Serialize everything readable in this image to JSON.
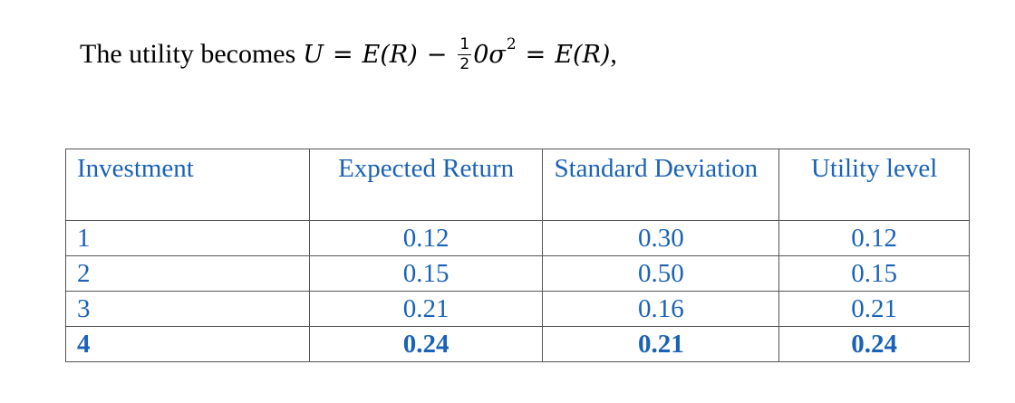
{
  "intro": {
    "prefix": "The utility becomes",
    "U": "U",
    "eq1": "=",
    "ER1": "E(R)",
    "minus": "−",
    "frac_num": "1",
    "frac_den": "2",
    "zero_sigma": "0σ",
    "sq": "2",
    "eq2": "=",
    "ER2": "E(R)",
    "tail": ","
  },
  "table": {
    "headers": [
      "Investment",
      "Expected Return",
      "Standard Deviation",
      "Utility level"
    ],
    "rows": [
      [
        "1",
        "0.12",
        "0.30",
        "0.12"
      ],
      [
        "2",
        "0.15",
        "0.50",
        "0.15"
      ],
      [
        "3",
        "0.21",
        "0.16",
        "0.21"
      ],
      [
        "4",
        "0.24",
        "0.21",
        "0.24"
      ]
    ],
    "highlight_row": 3,
    "text_color": "#1a62b5"
  }
}
